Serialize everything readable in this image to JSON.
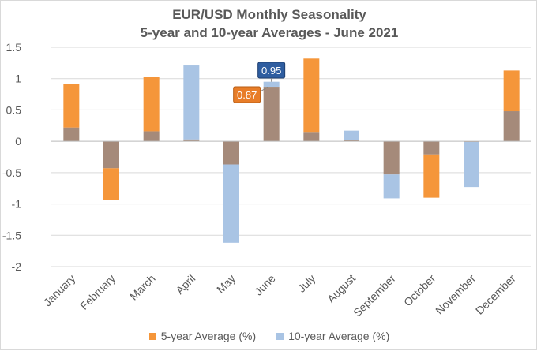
{
  "chart_data": {
    "type": "bar",
    "title": "EUR/USD Monthly Seasonality",
    "subtitle": "5-year and 10-year Averages - June 2021",
    "categories": [
      "January",
      "February",
      "March",
      "April",
      "May",
      "June",
      "July",
      "August",
      "September",
      "October",
      "November",
      "December"
    ],
    "series": [
      {
        "name": "5-year Average (%)",
        "color": "#F5963A",
        "values": [
          0.91,
          -0.94,
          1.03,
          0.03,
          -0.37,
          0.87,
          1.32,
          0.02,
          -0.53,
          -0.9,
          -0.01,
          1.13
        ]
      },
      {
        "name": "10-year Average (%)",
        "color": "#A9C4E4",
        "values": [
          0.22,
          -0.43,
          0.16,
          1.21,
          -1.62,
          0.95,
          0.15,
          0.17,
          -0.91,
          -0.21,
          -0.73,
          0.48
        ]
      }
    ],
    "overlap_color": "#A58A7A",
    "ylim": [
      -2,
      1.5
    ],
    "yticks": [
      1.5,
      1,
      0.5,
      0,
      -0.5,
      -1,
      -1.5,
      -2
    ],
    "ytick_labels": [
      "1.5",
      "1",
      "0.5",
      "0",
      "-0.5",
      "-1",
      "-1.5",
      "-2"
    ],
    "gridlines": true,
    "legend_position": "bottom",
    "annotations": [
      {
        "text": "0.95",
        "category": "June",
        "series": "10-year Average (%)",
        "fill": "#2E5DA0",
        "text_color": "#ffffff"
      },
      {
        "text": "0.87",
        "category": "June",
        "series": "5-year Average (%)",
        "fill": "#E87D28",
        "text_color": "#ffffff"
      }
    ]
  }
}
